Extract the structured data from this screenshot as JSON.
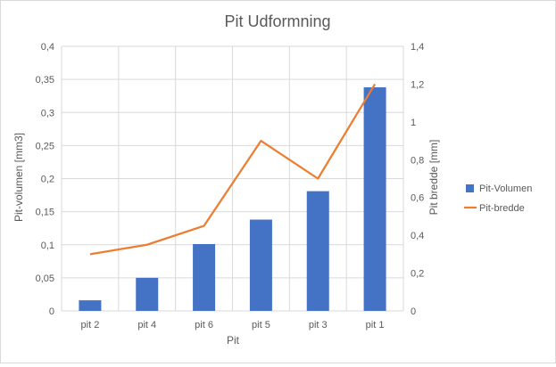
{
  "chart_data": {
    "type": "bar",
    "title": "Pit Udformning",
    "categories": [
      "pit 2",
      "pit 4",
      "pit 6",
      "pit 5",
      "pit 3",
      "pit 1"
    ],
    "xlabel": "Pit",
    "ylabel": "Pit-volumen [mm3]",
    "y2label": "Pit bredde [mm]",
    "ylim": [
      0,
      0.4
    ],
    "y2lim": [
      0,
      1.4
    ],
    "yticks": [
      "0",
      "0,05",
      "0,1",
      "0,15",
      "0,2",
      "0,25",
      "0,3",
      "0,35",
      "0,4"
    ],
    "y2ticks": [
      "0",
      "0,2",
      "0,4",
      "0,6",
      "0,8",
      "1",
      "1,2",
      "1,4"
    ],
    "grid": true,
    "legend": "right",
    "series": [
      {
        "name": "Pit-Volumen",
        "type": "bar",
        "axis": "left",
        "color": "#4472c4",
        "values": [
          0.016,
          0.05,
          0.101,
          0.138,
          0.181,
          0.338
        ]
      },
      {
        "name": "Pit-bredde",
        "type": "line",
        "axis": "right",
        "color": "#ed7d31",
        "values": [
          0.3,
          0.35,
          0.45,
          0.9,
          0.7,
          1.2
        ]
      }
    ]
  }
}
